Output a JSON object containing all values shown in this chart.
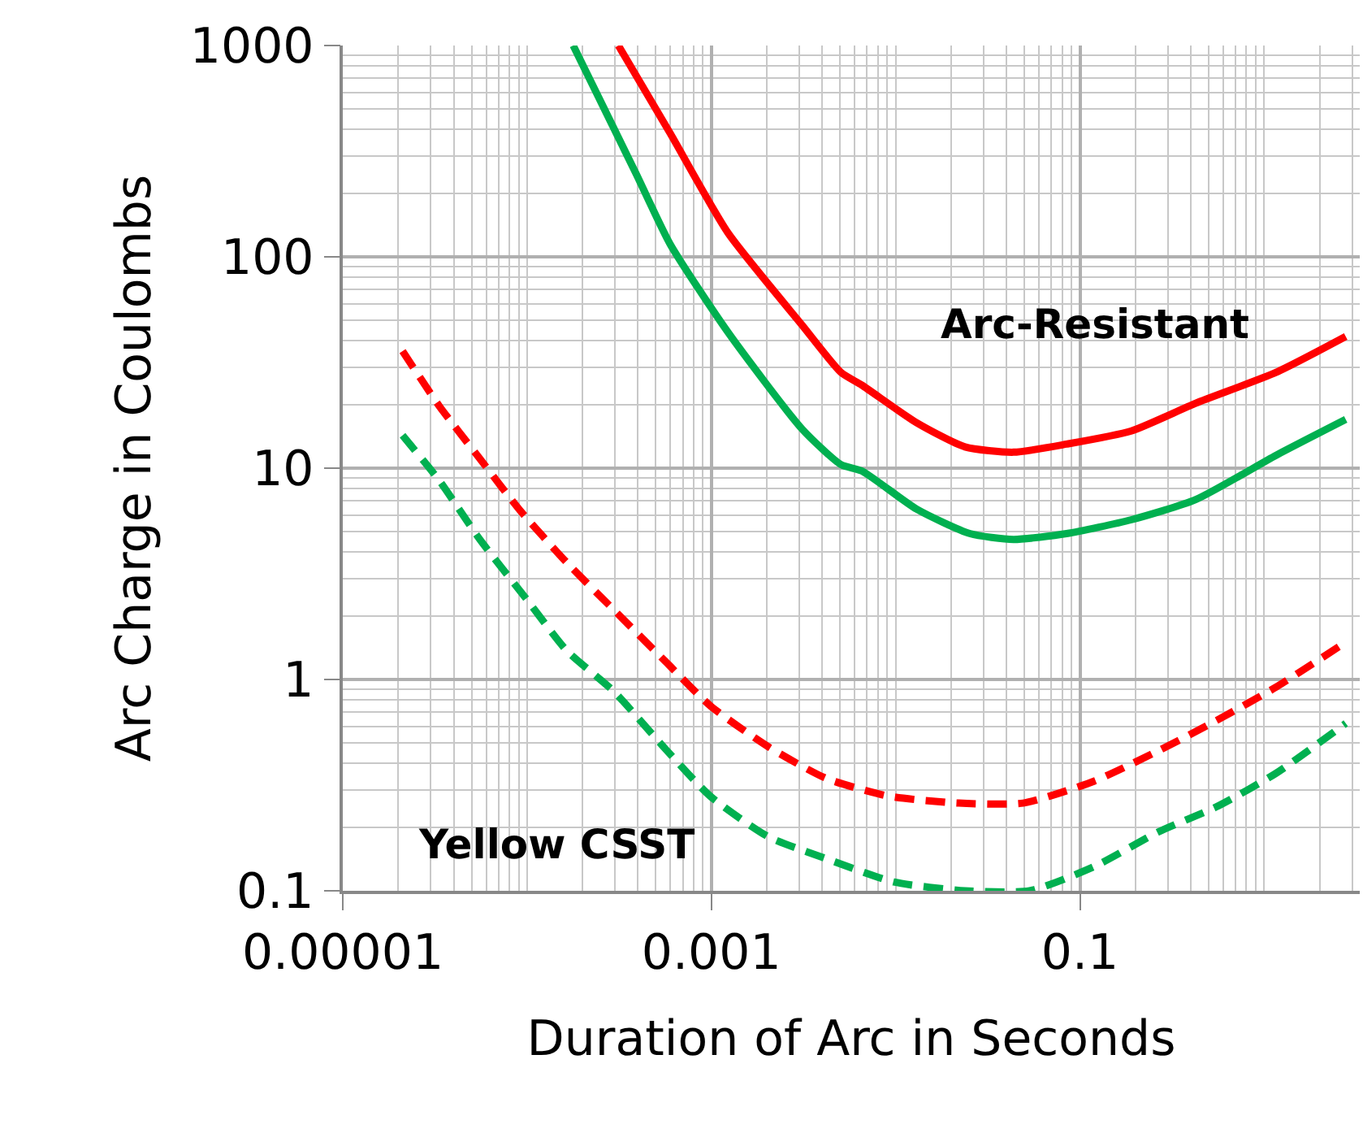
{
  "chart_data": {
    "type": "line",
    "xlabel": "Duration of Arc in Seconds",
    "ylabel": "Arc Charge in Coulombs",
    "log": "xy",
    "grid": true,
    "marker": "none",
    "xlim": [
      1e-05,
      3.3
    ],
    "xticks": [
      {
        "value": 1e-05,
        "label": "0.00001"
      },
      0.001,
      0.1
    ],
    "ylim": [
      0.1,
      1000
    ],
    "yticks": [
      0.1,
      1,
      10,
      100,
      1000
    ],
    "series": [
      {
        "color": "#ff0000",
        "line_style": "solid",
        "x": [
          0.000313,
          0.000597,
          0.00123,
          0.00311,
          0.00505,
          0.00656,
          0.013,
          0.0238,
          0.0436,
          0.0847,
          0.19,
          0.425,
          1.16,
          2.77
        ],
        "values": [
          1000,
          385,
          130,
          47.5,
          28.4,
          24.7,
          16.4,
          12.6,
          11.9,
          13,
          15,
          20.3,
          28.4,
          42
        ]
      },
      {
        "color": "#00b050",
        "line_style": "solid",
        "x": [
          0.000178,
          0.000391,
          0.000597,
          0.00123,
          0.00311,
          0.00505,
          0.00656,
          0.013,
          0.0253,
          0.0436,
          0.0847,
          0.19,
          0.425,
          1.16,
          2.77
        ],
        "values": [
          1000,
          247,
          115,
          44,
          15.3,
          10.4,
          9.7,
          6.4,
          4.9,
          4.6,
          4.9,
          5.7,
          7.1,
          11.5,
          17
        ]
      },
      {
        "color": "#ff0000",
        "line_style": "dashed",
        "x": [
          2.11e-05,
          3.35e-05,
          5.54e-05,
          9.17e-05,
          0.000164,
          0.000295,
          0.000562,
          0.000988,
          0.00204,
          0.00421,
          0.00925,
          0.022,
          0.0492,
          0.119,
          0.267,
          0.552,
          1.16,
          2.77
        ],
        "values": [
          35.8,
          19.6,
          11.1,
          6.3,
          3.58,
          2.14,
          1.22,
          0.75,
          0.48,
          0.34,
          0.28,
          0.26,
          0.26,
          0.33,
          0.46,
          0.64,
          0.92,
          1.5
        ]
      },
      {
        "color": "#00b050",
        "line_style": "dashed",
        "x": [
          2.11e-05,
          3.35e-05,
          5.54e-05,
          9.93e-05,
          0.000164,
          0.000295,
          0.000562,
          0.000988,
          0.00204,
          0.00439,
          0.0098,
          0.0238,
          0.0533,
          0.119,
          0.267,
          0.552,
          1.16,
          2.77
        ],
        "values": [
          14.3,
          8.7,
          4.6,
          2.4,
          1.37,
          0.88,
          0.47,
          0.28,
          0.18,
          0.14,
          0.11,
          0.1,
          0.1,
          0.13,
          0.19,
          0.25,
          0.36,
          0.62
        ]
      }
    ],
    "annotations": [
      "Arc-Resistant",
      "Yellow CSST"
    ]
  }
}
